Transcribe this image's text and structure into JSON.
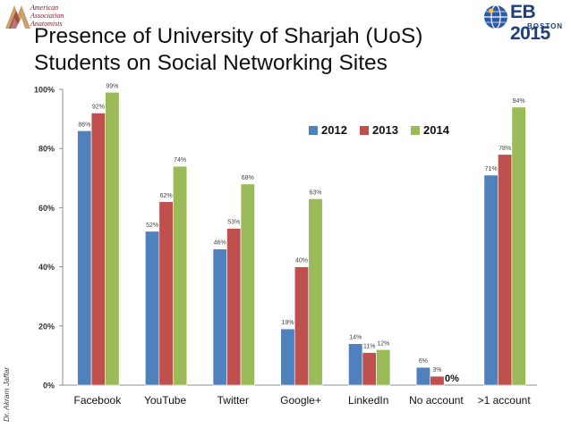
{
  "slide": {
    "title_line1": "Presence of University of Sharjah (UoS)",
    "title_line2": "Students on Social Networking Sites",
    "author": "Dr. Akram Jaffar",
    "aaa_logo_lines": [
      "American",
      "Association",
      "Anatomists"
    ],
    "eb_logo_main": "EB 2015",
    "eb_logo_sub": "BOSTON"
  },
  "colors": {
    "s2012": "#4f81bd",
    "s2013": "#c0504d",
    "s2014": "#9bbb59"
  },
  "chart_data": {
    "type": "bar",
    "title": "",
    "xlabel": "",
    "ylabel": "",
    "ylim": [
      0,
      100
    ],
    "yticks": [
      "0%",
      "20%",
      "40%",
      "60%",
      "80%",
      "100%"
    ],
    "legend_position": "top-right",
    "categories": [
      "Facebook",
      "YouTube",
      "Twitter",
      "Google+",
      "LinkedIn",
      "No account",
      ">1 account"
    ],
    "series": [
      {
        "name": "2012",
        "values": [
          86,
          52,
          46,
          19,
          14,
          6,
          71
        ],
        "labels": [
          "86%",
          "52%",
          "46%",
          "19%",
          "14%",
          "6%",
          "71%"
        ]
      },
      {
        "name": "2013",
        "values": [
          92,
          62,
          53,
          40,
          11,
          3,
          78
        ],
        "labels": [
          "92%",
          "62%",
          "53%",
          "40%",
          "11%",
          "3%",
          "78%"
        ]
      },
      {
        "name": "2014",
        "values": [
          99,
          74,
          68,
          63,
          12,
          0,
          94
        ],
        "labels": [
          "99%",
          "74%",
          "68%",
          "63%",
          "12%",
          "0%",
          "94%"
        ]
      }
    ]
  }
}
